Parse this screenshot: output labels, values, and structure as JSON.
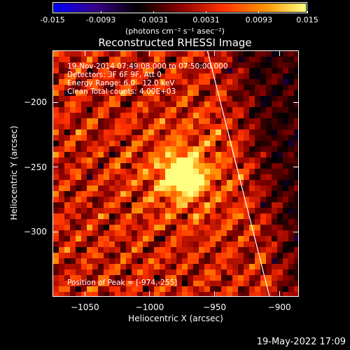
{
  "chart_data": {
    "type": "heatmap",
    "title": "Reconstructed RHESSI Image",
    "xlabel": "Heliocentric X (arcsec)",
    "ylabel": "Heliocentric Y (arcsec)",
    "xlim": [
      -1075,
      -885
    ],
    "ylim": [
      -350,
      -160
    ],
    "x_ticks": [
      "-1050",
      "-1000",
      "-950",
      "-900"
    ],
    "x_tick_values": [
      -1050,
      -1000,
      -950,
      -900
    ],
    "y_ticks": [
      "-200",
      "-250",
      "-300"
    ],
    "y_tick_values": [
      -200,
      -250,
      -300
    ],
    "colorbar": {
      "min": -0.015,
      "max": 0.015,
      "ticks": [
        "-0.015",
        "-0.0093",
        "-0.0031",
        "0.0031",
        "0.0093",
        "0.015"
      ],
      "tick_values": [
        -0.015,
        -0.0093,
        -0.0031,
        0.0031,
        0.0093,
        0.015
      ],
      "units": "(photons cm⁻² s⁻¹ asec⁻²)",
      "colormap": [
        "#0000ff",
        "#3a0088",
        "#000000",
        "#8a0000",
        "#ff3000",
        "#ff9000",
        "#ffff80"
      ]
    },
    "annotations": {
      "time_range": "19-Nov-2014 07:49:08.000 to 07:50:00.000",
      "detectors": "Detectors: 3F 6F 9F, Att 0",
      "energy": "Energy Range: 6.0 - 12.0 keV",
      "clean": "Clean     Total counts: 4.00E+03",
      "peak": "Position of Peak = [-974,-255]"
    },
    "peak": {
      "x": -974,
      "y": -255
    },
    "limb_line": {
      "x1": -956,
      "y1": -160,
      "x2": -908,
      "y2": -350
    },
    "background_color": "#000000",
    "limb_color": "#ffffff"
  },
  "footer": {
    "timestamp": "19-May-2022 17:09"
  }
}
